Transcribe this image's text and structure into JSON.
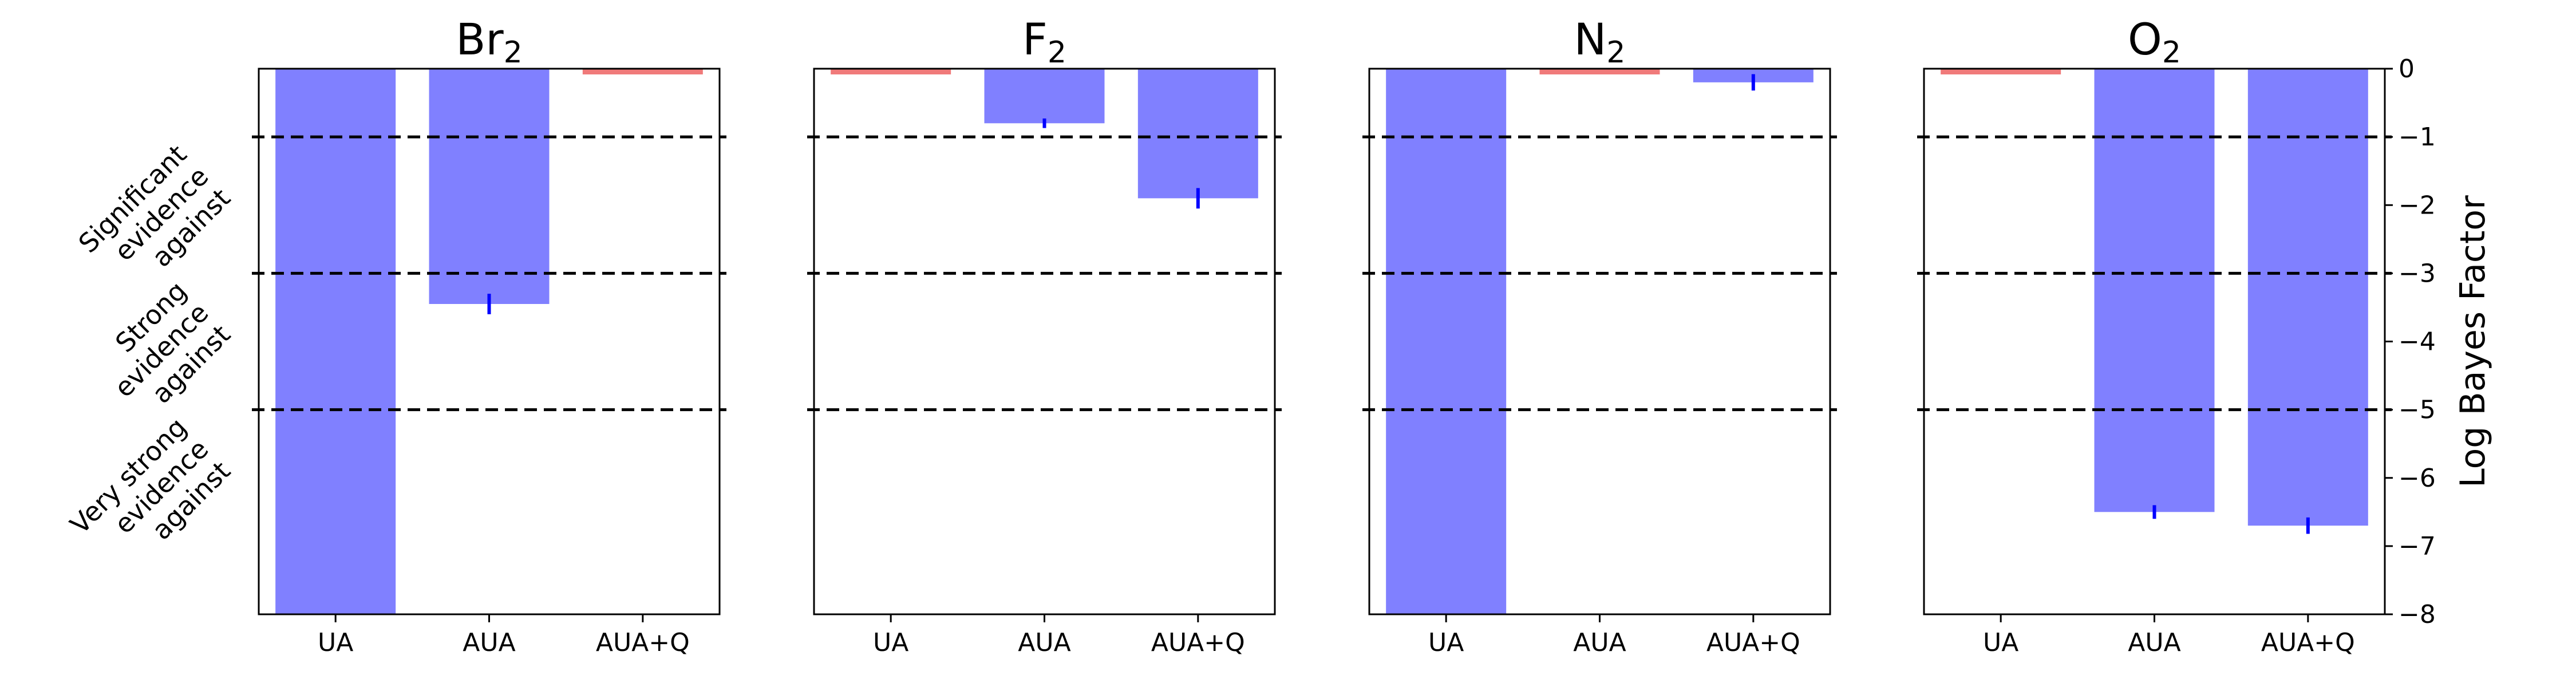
{
  "chart_data": {
    "type": "bar",
    "categories": [
      "UA",
      "AUA",
      "AUA+Q"
    ],
    "ylabel": "Log Bayes Factor",
    "ylim": [
      -8,
      0
    ],
    "yticks": [
      "0",
      "−1",
      "−2",
      "−3",
      "−4",
      "−5",
      "−6",
      "−7",
      "−8"
    ],
    "yaxis_side": "right",
    "reference_lines": [
      -1,
      -3,
      -5
    ],
    "evidence_labels": [
      {
        "lines": [
          "Significant",
          "evidence",
          "against"
        ],
        "level": -1
      },
      {
        "lines": [
          "Strong",
          "evidence",
          "against"
        ],
        "level": -3
      },
      {
        "lines": [
          "Very strong",
          "evidence",
          "against"
        ],
        "level": -5
      }
    ],
    "colors": {
      "bar": "#8080ff",
      "reference_bar": "#f07a7a",
      "errorbar": "#0000ff",
      "dashed": "#000000"
    },
    "panels": [
      {
        "title_base": "Br",
        "title_sub": "2",
        "values": [
          -8.0,
          -3.45,
          0.0
        ],
        "errors": [
          0.0,
          0.15,
          0.0
        ],
        "reference": [
          false,
          false,
          true
        ]
      },
      {
        "title_base": "F",
        "title_sub": "2",
        "values": [
          0.0,
          -0.8,
          -1.9
        ],
        "errors": [
          0.0,
          0.07,
          0.15
        ],
        "reference": [
          true,
          false,
          false
        ]
      },
      {
        "title_base": "N",
        "title_sub": "2",
        "values": [
          -8.0,
          0.0,
          -0.2
        ],
        "errors": [
          0.0,
          0.0,
          0.12
        ],
        "reference": [
          false,
          true,
          false
        ]
      },
      {
        "title_base": "O",
        "title_sub": "2",
        "values": [
          0.0,
          -6.5,
          -6.7
        ],
        "errors": [
          0.0,
          0.1,
          0.12
        ],
        "reference": [
          true,
          false,
          false
        ]
      }
    ]
  }
}
